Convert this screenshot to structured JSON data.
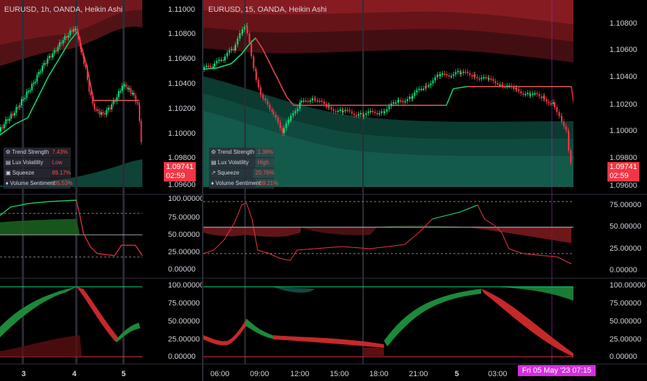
{
  "left_chart": {
    "title": "EURUSD, 1h, OANDA, Heikin Ashi",
    "price_ticks": [
      "1.11000",
      "1.10800",
      "1.10600",
      "1.10400",
      "1.10200",
      "1.10000",
      "1.09800",
      "1.09600"
    ],
    "price_badge": "1.09741",
    "countdown": "02:59",
    "info": [
      {
        "icon": "gear-icon",
        "glyph": "⚙",
        "label": "Trend Strength",
        "value": "7.43%",
        "color": "#ef5350"
      },
      {
        "icon": "chart-icon",
        "glyph": "▤",
        "label": "Lux Volatility",
        "value": "Low",
        "color": "#ef5350"
      },
      {
        "icon": "squeeze-icon",
        "glyph": "▣",
        "label": "Squeeze",
        "value": "89.17%",
        "color": "#ef5350"
      },
      {
        "icon": "drop-icon",
        "glyph": "♦",
        "label": "Volume Sentiment",
        "value": "-35.53%",
        "color": "#ef5350"
      }
    ],
    "osc1_ticks": [
      "100.00000",
      "75.00000",
      "50.00000",
      "25.00000",
      "0.00000"
    ],
    "osc2_ticks": [
      "100.00000",
      "75.00000",
      "50.00000",
      "25.00000",
      "0.00000"
    ],
    "time_labels": [
      "3",
      "4",
      "5"
    ]
  },
  "right_chart": {
    "title": "EURUSD, 15, OANDA, Heikin Ashi",
    "price_ticks": [
      "1.10800",
      "1.10600",
      "1.10400",
      "1.10200",
      "1.10000",
      "1.09800",
      "1.09600"
    ],
    "price_badge": "1.09741",
    "countdown": "02:59",
    "info": [
      {
        "icon": "gear-icon",
        "glyph": "⚙",
        "label": "Trend Strength",
        "value": "1.38%",
        "color": "#ef5350"
      },
      {
        "icon": "chart-icon",
        "glyph": "▤",
        "label": "Lux Volatility",
        "value": "High",
        "color": "#ef5350"
      },
      {
        "icon": "arrow-icon",
        "glyph": "↗",
        "label": "Squeeze",
        "value": "20.76%",
        "color": "#ef5350"
      },
      {
        "icon": "drop-icon",
        "glyph": "♦",
        "label": "Volume Sentiment",
        "value": "-39.21%",
        "color": "#ef5350"
      }
    ],
    "osc1_ticks": [
      "75.00000",
      "50.00000",
      "25.00000",
      "0.00000"
    ],
    "osc2_ticks": [
      "100.00000",
      "75.00000",
      "50.00000",
      "25.00000",
      "0.00000"
    ],
    "time_labels": [
      "06:00",
      "09:00",
      "12:00",
      "15:00",
      "18:00",
      "21:00",
      "5",
      "03:00"
    ],
    "cursor_time": "Fri 05 May '23   07:15"
  },
  "colors": {
    "up": "#00e676",
    "down": "#f23645",
    "band_red": "#7a1a1e",
    "band_green": "#0f4a3e",
    "grid": "#2a2e39"
  }
}
